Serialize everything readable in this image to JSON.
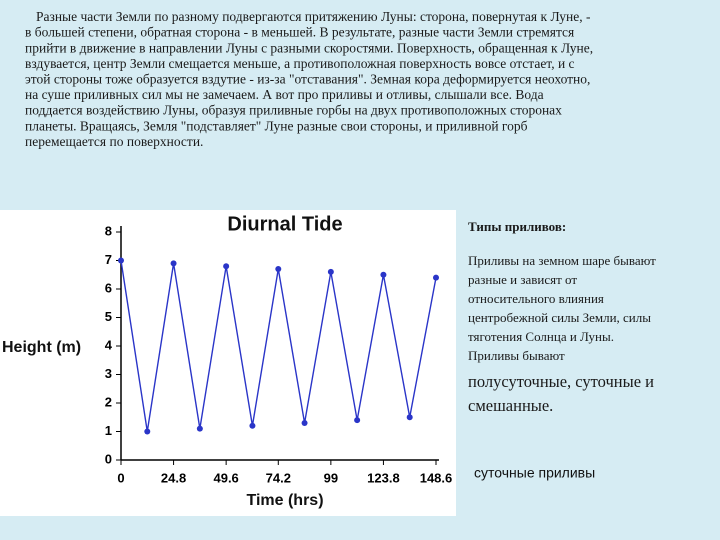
{
  "text": {
    "paragraph": [
      "Разные части Земли по разному подвергаются притяжению Луны: сторона, повернутая к Луне, -",
      "в большей степени, обратная сторона - в меньшей. В результате, разные части Земли стремятся",
      "прийти в движение в направлении Луны с разными скоростями. Поверхность, обращенная к Луне,",
      "вздувается, центр Земли смещается меньше, а противоположная поверхность вовсе отстает, и с",
      "этой стороны тоже образуется вздутие - из-за \"отставания\". Земная кора деформируется неохотно,",
      "на суше приливных сил мы не замечаем. А вот про приливы и отливы, слышали все. Вода",
      "поддается воздействию Луны, образуя приливные горбы на двух противоположных сторонах",
      "планеты. Вращаясь, Земля \"подставляет\" Луне разные свои стороны, и приливной горб",
      "перемещается по поверхности."
    ],
    "side_heading": "Типы приливов:",
    "side_body": [
      "Приливы на земном шаре бывают",
      "разные и зависят от",
      "относительного влияния",
      "центробежной силы Земли, силы",
      "тяготения Солнца и Луны.",
      "Приливы бывают"
    ],
    "side_types": [
      "полусуточные, суточные и",
      "смешанные."
    ],
    "caption": "суточные приливы"
  },
  "chart_data": {
    "type": "line",
    "title": "Diurnal Tide",
    "x_label": "Time (hrs)",
    "y_label": "Height (m)",
    "xlim": [
      0,
      150
    ],
    "ylim": [
      0,
      8
    ],
    "xticks": [
      0,
      24.8,
      49.6,
      74.2,
      99,
      123.8,
      148.6
    ],
    "yticks": [
      0,
      1,
      2,
      3,
      4,
      5,
      6,
      7,
      8
    ],
    "x": [
      0,
      12.4,
      24.8,
      37.2,
      49.6,
      62,
      74.2,
      86.6,
      99,
      111.4,
      123.8,
      136.2,
      148.6
    ],
    "series": [
      {
        "name": "Height",
        "color": "#2a35c8",
        "values": [
          7,
          1,
          6.9,
          1.1,
          6.8,
          1.2,
          6.7,
          1.3,
          6.6,
          1.4,
          6.5,
          1.5,
          6.4
        ]
      }
    ]
  }
}
